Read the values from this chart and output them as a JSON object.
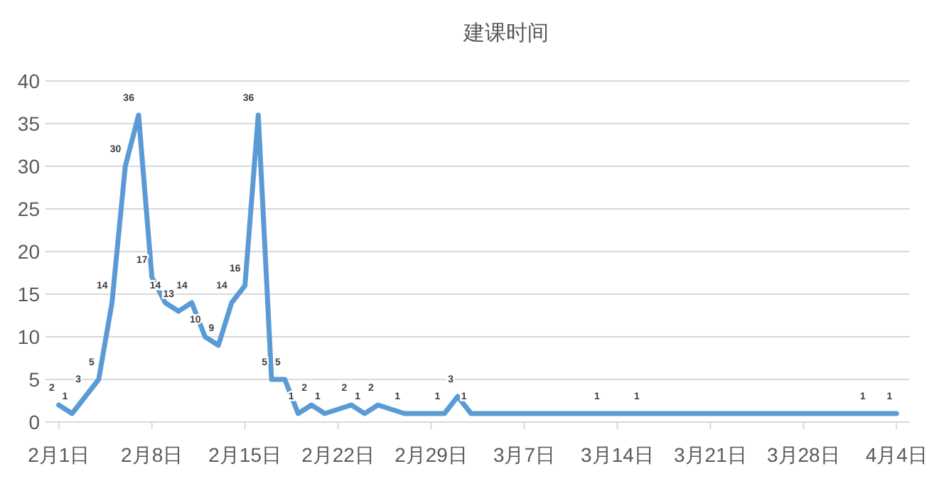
{
  "chart_data": {
    "type": "line",
    "title": "建课时间",
    "x": [
      "--02-01",
      "--02-02",
      "--02-03",
      "--02-04",
      "--02-05",
      "--02-06",
      "--02-07",
      "--02-08",
      "--02-09",
      "--02-10",
      "--02-11",
      "--02-12",
      "--02-13",
      "--02-14",
      "--02-15",
      "--02-16",
      "--02-17",
      "--02-18",
      "--02-19",
      "--02-20",
      "--02-21",
      "--02-23",
      "--02-24",
      "--02-25",
      "--02-27",
      "--03-01",
      "--03-02",
      "--03-03",
      "--03-13",
      "--03-16",
      "--04-02",
      "--04-04"
    ],
    "series": [
      {
        "color": "#5b9bd5",
        "values": [
          2,
          1,
          3,
          5,
          14,
          30,
          36,
          17,
          14,
          13,
          14,
          10,
          9,
          14,
          16,
          36,
          5,
          5,
          1,
          2,
          1,
          2,
          1,
          2,
          1,
          1,
          3,
          1,
          1,
          1,
          1,
          1
        ]
      }
    ],
    "xlim": [
      "--01-31",
      "--04-05"
    ],
    "xticks": [
      {
        "value": "--02-01",
        "label": "2月1日"
      },
      {
        "value": "--02-08",
        "label": "2月8日"
      },
      {
        "value": "--02-15",
        "label": "2月15日"
      },
      {
        "value": "--02-22",
        "label": "2月22日"
      },
      {
        "value": "--02-29",
        "label": "2月29日"
      },
      {
        "value": "--03-07",
        "label": "3月7日"
      },
      {
        "value": "--03-14",
        "label": "3月14日"
      },
      {
        "value": "--03-21",
        "label": "3月21日"
      },
      {
        "value": "--03-28",
        "label": "3月28日"
      },
      {
        "value": "--04-04",
        "label": "4月4日"
      }
    ],
    "ylim": [
      0,
      40
    ],
    "yticks": [
      0,
      5,
      10,
      15,
      20,
      25,
      30,
      35,
      40
    ],
    "grid": "y",
    "data_labels": true,
    "marker": "none",
    "line_style": "solid"
  }
}
